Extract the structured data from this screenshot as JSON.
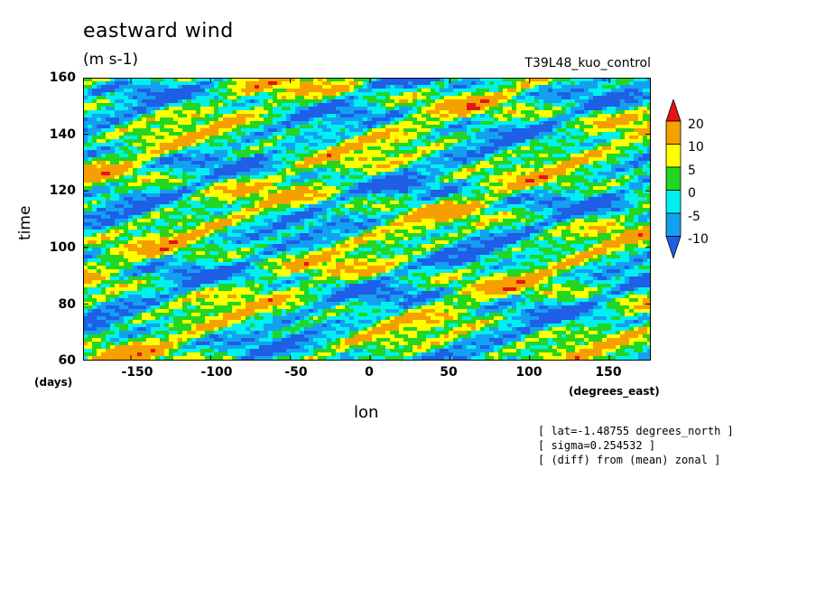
{
  "chart_data": {
    "type": "heatmap",
    "title": "eastward wind",
    "units": "(m s-1)",
    "run_label": "T39L48_kuo_control",
    "xlabel": "lon",
    "ylabel": "time",
    "x_unit": "(degrees_east)",
    "y_unit": "(days)",
    "xlim": [
      -180,
      176
    ],
    "ylim": [
      60,
      160
    ],
    "x_ticks": [
      "-150",
      "-100",
      "-50",
      "0",
      "50",
      "100",
      "150"
    ],
    "x_tick_values": [
      -150,
      -100,
      -50,
      0,
      50,
      100,
      150
    ],
    "y_ticks": [
      "60",
      "80",
      "100",
      "120",
      "140",
      "160"
    ],
    "y_tick_values": [
      60,
      80,
      100,
      120,
      140,
      160
    ],
    "colorbar": {
      "levels": [
        "20",
        "10",
        "5",
        "0",
        "-5",
        "-10"
      ],
      "level_values": [
        -10,
        -5,
        0,
        5,
        10,
        20
      ],
      "colors": [
        "#1e5fe6",
        "#14a0f0",
        "#00f0f0",
        "#22d622",
        "#ffff00",
        "#f5a000",
        "#e61414"
      ],
      "extend": "both"
    },
    "notes": [
      "[ lat=-1.48755 degrees_north ]",
      "[ sigma=0.254532 ]",
      "[ (diff) from (mean) zonal ]"
    ]
  }
}
